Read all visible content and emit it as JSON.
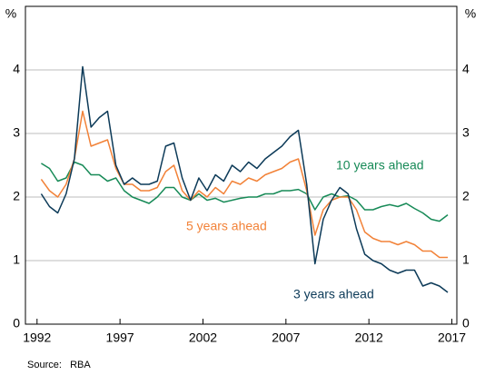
{
  "chart_data": {
    "type": "line",
    "ylabel": "%",
    "y2label": "%",
    "source": "Source:   RBA",
    "xlim": [
      1991.3,
      2017.3
    ],
    "xticks": [
      1992,
      1997,
      2002,
      2007,
      2012,
      2017
    ],
    "ylim": [
      0,
      5
    ],
    "yticks": [
      0,
      1,
      2,
      3,
      4
    ],
    "y2lim": [
      0,
      5
    ],
    "y2ticks": [
      0,
      1,
      2,
      3,
      4
    ],
    "grid": true,
    "x": [
      1992.25,
      1992.75,
      1993.25,
      1993.75,
      1994.25,
      1994.75,
      1995.25,
      1995.75,
      1996.25,
      1996.75,
      1997.25,
      1997.75,
      1998.25,
      1998.75,
      1999.25,
      1999.75,
      2000.25,
      2000.75,
      2001.25,
      2001.75,
      2002.25,
      2002.75,
      2003.25,
      2003.75,
      2004.25,
      2004.75,
      2005.25,
      2005.75,
      2006.25,
      2006.75,
      2007.25,
      2007.75,
      2008.25,
      2008.75,
      2009.25,
      2009.75,
      2010.25,
      2010.75,
      2011.25,
      2011.75,
      2012.25,
      2012.75,
      2013.25,
      2013.75,
      2014.25,
      2014.75,
      2015.25,
      2015.75,
      2016.25,
      2016.75
    ],
    "series": [
      {
        "name": "10 years ahead",
        "color": "#178a57",
        "values": [
          2.53,
          2.45,
          2.25,
          2.3,
          2.55,
          2.5,
          2.35,
          2.35,
          2.25,
          2.3,
          2.1,
          2.0,
          1.95,
          1.9,
          2.0,
          2.15,
          2.15,
          2.0,
          1.95,
          2.05,
          1.95,
          1.98,
          1.92,
          1.95,
          1.98,
          2.0,
          2.0,
          2.05,
          2.05,
          2.1,
          2.1,
          2.12,
          2.05,
          1.8,
          2.0,
          2.05,
          2.0,
          2.02,
          1.95,
          1.8,
          1.8,
          1.85,
          1.88,
          1.85,
          1.9,
          1.82,
          1.75,
          1.65,
          1.62,
          1.72
        ]
      },
      {
        "name": "5 years ahead",
        "color": "#f28238",
        "values": [
          2.28,
          2.1,
          2.0,
          2.2,
          2.6,
          3.35,
          2.8,
          2.85,
          2.9,
          2.45,
          2.2,
          2.2,
          2.1,
          2.1,
          2.15,
          2.4,
          2.5,
          2.1,
          1.95,
          2.1,
          2.0,
          2.15,
          2.05,
          2.25,
          2.2,
          2.3,
          2.25,
          2.35,
          2.4,
          2.45,
          2.55,
          2.6,
          2.1,
          1.4,
          1.8,
          1.95,
          2.0,
          2.0,
          1.8,
          1.45,
          1.35,
          1.3,
          1.3,
          1.25,
          1.3,
          1.25,
          1.15,
          1.15,
          1.05,
          1.05
        ]
      },
      {
        "name": "3 years ahead",
        "color": "#0c3a58",
        "values": [
          2.05,
          1.85,
          1.75,
          2.05,
          2.6,
          4.05,
          3.1,
          3.25,
          3.35,
          2.5,
          2.2,
          2.3,
          2.2,
          2.2,
          2.25,
          2.8,
          2.85,
          2.3,
          1.95,
          2.3,
          2.1,
          2.35,
          2.25,
          2.5,
          2.4,
          2.55,
          2.45,
          2.6,
          2.7,
          2.8,
          2.95,
          3.05,
          2.2,
          0.95,
          1.65,
          1.95,
          2.15,
          2.05,
          1.5,
          1.1,
          1.0,
          0.95,
          0.85,
          0.8,
          0.85,
          0.85,
          0.6,
          0.65,
          0.6,
          0.5
        ]
      }
    ]
  }
}
